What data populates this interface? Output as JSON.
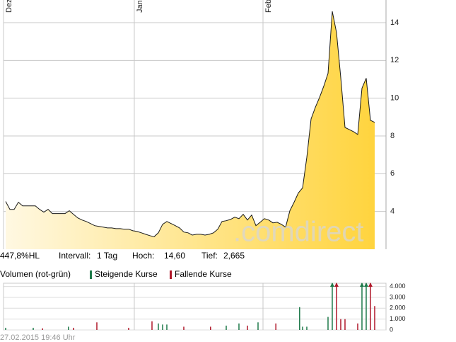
{
  "chart_data": [
    {
      "type": "area",
      "color": "#1a1a1a",
      "fill_colors": [
        "#fff8e2",
        "#ffd43e"
      ],
      "values": [
        4.53,
        4.11,
        4.11,
        4.49,
        4.3,
        4.3,
        4.3,
        4.3,
        4.11,
        3.96,
        4.11,
        3.89,
        3.89,
        3.89,
        3.89,
        4.04,
        3.85,
        3.66,
        3.55,
        3.47,
        3.36,
        3.25,
        3.21,
        3.17,
        3.13,
        3.13,
        3.09,
        3.09,
        3.06,
        3.06,
        2.98,
        2.94,
        2.87,
        2.79,
        2.72,
        2.665,
        2.87,
        3.32,
        3.47,
        3.36,
        3.25,
        3.13,
        2.91,
        2.87,
        2.75,
        2.79,
        2.79,
        2.75,
        2.79,
        2.87,
        3.06,
        3.47,
        3.51,
        3.58,
        3.7,
        3.62,
        3.85,
        3.55,
        3.81,
        3.25,
        3.43,
        3.62,
        3.55,
        3.4,
        3.43,
        3.32,
        3.17,
        4.04,
        4.49,
        4.98,
        5.25,
        6.87,
        8.9,
        9.51,
        10.04,
        10.64,
        11.32,
        14.6,
        13.47,
        11.09,
        8.45,
        8.34,
        8.23,
        8.08,
        10.53,
        11.06,
        8.83,
        8.72
      ],
      "xlim": [
        -0.5,
        89.67
      ],
      "xticks": [
        {
          "value": -0.5,
          "label": "Dez"
        },
        {
          "value": 30.33,
          "label": "Jan"
        },
        {
          "value": 60.67,
          "label": "Feb"
        }
      ],
      "ylim": [
        2,
        15.2
      ],
      "yticks": [
        4,
        6,
        8,
        10,
        12,
        14
      ],
      "grid": true
    },
    {
      "type": "bar",
      "title": "Volumen (rot-grün)",
      "series": [
        {
          "name": "Steigende Kurse",
          "color": "#1e7a4a",
          "x": [
            0,
            6.5,
            14.8,
            36,
            37,
            38,
            52,
            55,
            59.5,
            69.3,
            70,
            71,
            76,
            77,
            84,
            85
          ],
          "values": [
            200,
            200,
            300,
            600,
            500,
            500,
            400,
            600,
            700,
            2100,
            300,
            300,
            1200,
            4300,
            4300,
            4300
          ]
        },
        {
          "name": "Fallende Kurse",
          "color": "#b0182a",
          "x": [
            8.7,
            16,
            21.5,
            29,
            34.5,
            42,
            48.3,
            57,
            63.7,
            78,
            79,
            80,
            83,
            86,
            87
          ],
          "values": [
            150,
            200,
            700,
            200,
            800,
            300,
            300,
            400,
            600,
            4300,
            1000,
            1000,
            600,
            4300,
            2200
          ]
        }
      ],
      "xlim": [
        -0.5,
        89.67
      ],
      "ylim": [
        0,
        4300
      ],
      "yticks": [
        0,
        {
          "value": 1000,
          "label": "1.000"
        },
        {
          "value": 2000,
          "label": "2.000"
        },
        {
          "value": 3000,
          "label": "3.000"
        },
        {
          "value": 4000,
          "label": "4.000"
        }
      ],
      "grid": true
    }
  ],
  "info": {
    "change": "447,8%HL",
    "interval_label": "Intervall:",
    "interval": "1 Tag",
    "high_label": "Hoch:",
    "high": "14,60",
    "low_label": "Tief:",
    "low": "2,665"
  },
  "watermark": ".comdirect",
  "footer": "27.02.2015 19:46 Uhr"
}
